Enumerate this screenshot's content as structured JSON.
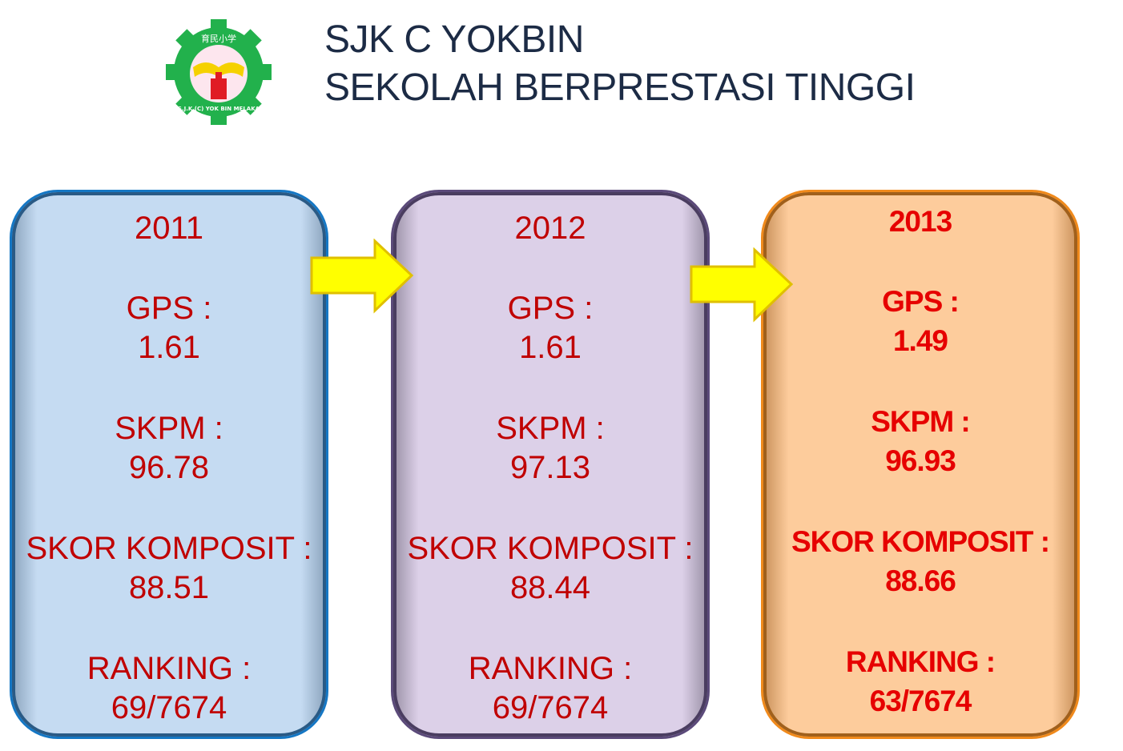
{
  "header": {
    "line1": "SJK C YOKBIN",
    "line2": "SEKOLAH BERPRESTASI TINGGI",
    "logo": {
      "chinese_text": "育民小学",
      "ring_text": "S.J.K (C) YOK BIN MELAKA"
    }
  },
  "colors": {
    "title": "#1c2b45",
    "value_text": "#c00000",
    "arrow": "#ffff00",
    "box_2011": "#c5dbf2",
    "box_2012": "#dcd0e8",
    "box_2013": "#fdcc9c"
  },
  "years": [
    {
      "year": "2011",
      "gps_label": "GPS :",
      "gps": "1.61",
      "skpm_label": "SKPM :",
      "skpm": "96.78",
      "skor_label": "SKOR KOMPOSIT :",
      "skor": "88.51",
      "ranking_label": "RANKING :",
      "ranking": "69/7674"
    },
    {
      "year": "2012",
      "gps_label": "GPS :",
      "gps": "1.61",
      "skpm_label": "SKPM :",
      "skpm": "97.13",
      "skor_label": "SKOR KOMPOSIT :",
      "skor": "88.44",
      "ranking_label": "RANKING :",
      "ranking": "69/7674"
    },
    {
      "year": "2013",
      "gps_label": "GPS :",
      "gps": "1.49",
      "skpm_label": "SKPM :",
      "skpm": "96.93",
      "skor_label": "SKOR KOMPOSIT :",
      "skor": "88.66",
      "ranking_label": "RANKING :",
      "ranking": "63/7674"
    }
  ]
}
